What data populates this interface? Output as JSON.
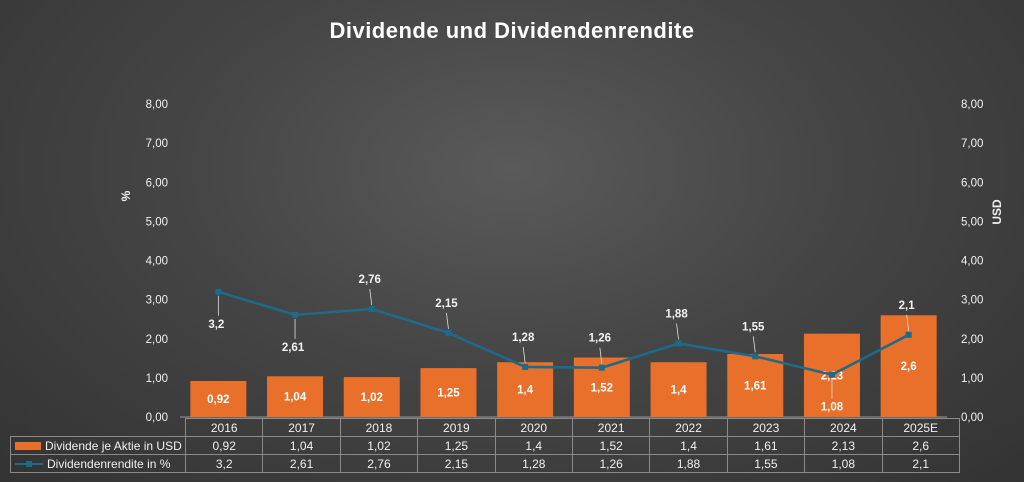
{
  "chart_data": {
    "type": "bar",
    "title": "Dividende und Dividendenrendite",
    "categories": [
      "2016",
      "2017",
      "2018",
      "2019",
      "2020",
      "2021",
      "2022",
      "2023",
      "2024",
      "2025E"
    ],
    "series": [
      {
        "name": "Dividende je Aktie in USD",
        "type": "bar",
        "axis": "right",
        "values": [
          0.92,
          1.04,
          1.02,
          1.25,
          1.4,
          1.52,
          1.4,
          1.61,
          2.13,
          2.6
        ],
        "labels": [
          "0,92",
          "1,04",
          "1,02",
          "1,25",
          "1,4",
          "1,52",
          "1,4",
          "1,61",
          "2,13",
          "2,6"
        ],
        "color": "#e8702a"
      },
      {
        "name": "Dividendenrendite in %",
        "type": "line",
        "axis": "left",
        "values": [
          3.2,
          2.61,
          2.76,
          2.15,
          1.28,
          1.26,
          1.88,
          1.55,
          1.08,
          2.1
        ],
        "labels": [
          "3,2",
          "2,61",
          "2,76",
          "2,15",
          "1,28",
          "1,26",
          "1,88",
          "1,55",
          "1,08",
          "2,1"
        ],
        "color": "#1e6a8a"
      }
    ],
    "y_left": {
      "label": "%",
      "ylim": [
        0,
        8
      ],
      "ticks": [
        "0,00",
        "1,00",
        "2,00",
        "3,00",
        "4,00",
        "5,00",
        "6,00",
        "7,00",
        "8,00"
      ]
    },
    "y_right": {
      "label": "USD",
      "ylim": [
        0,
        8
      ],
      "ticks": [
        "0,00",
        "1,00",
        "2,00",
        "3,00",
        "4,00",
        "5,00",
        "6,00",
        "7,00",
        "8,00"
      ]
    },
    "grid": false,
    "legend": "data-table"
  }
}
